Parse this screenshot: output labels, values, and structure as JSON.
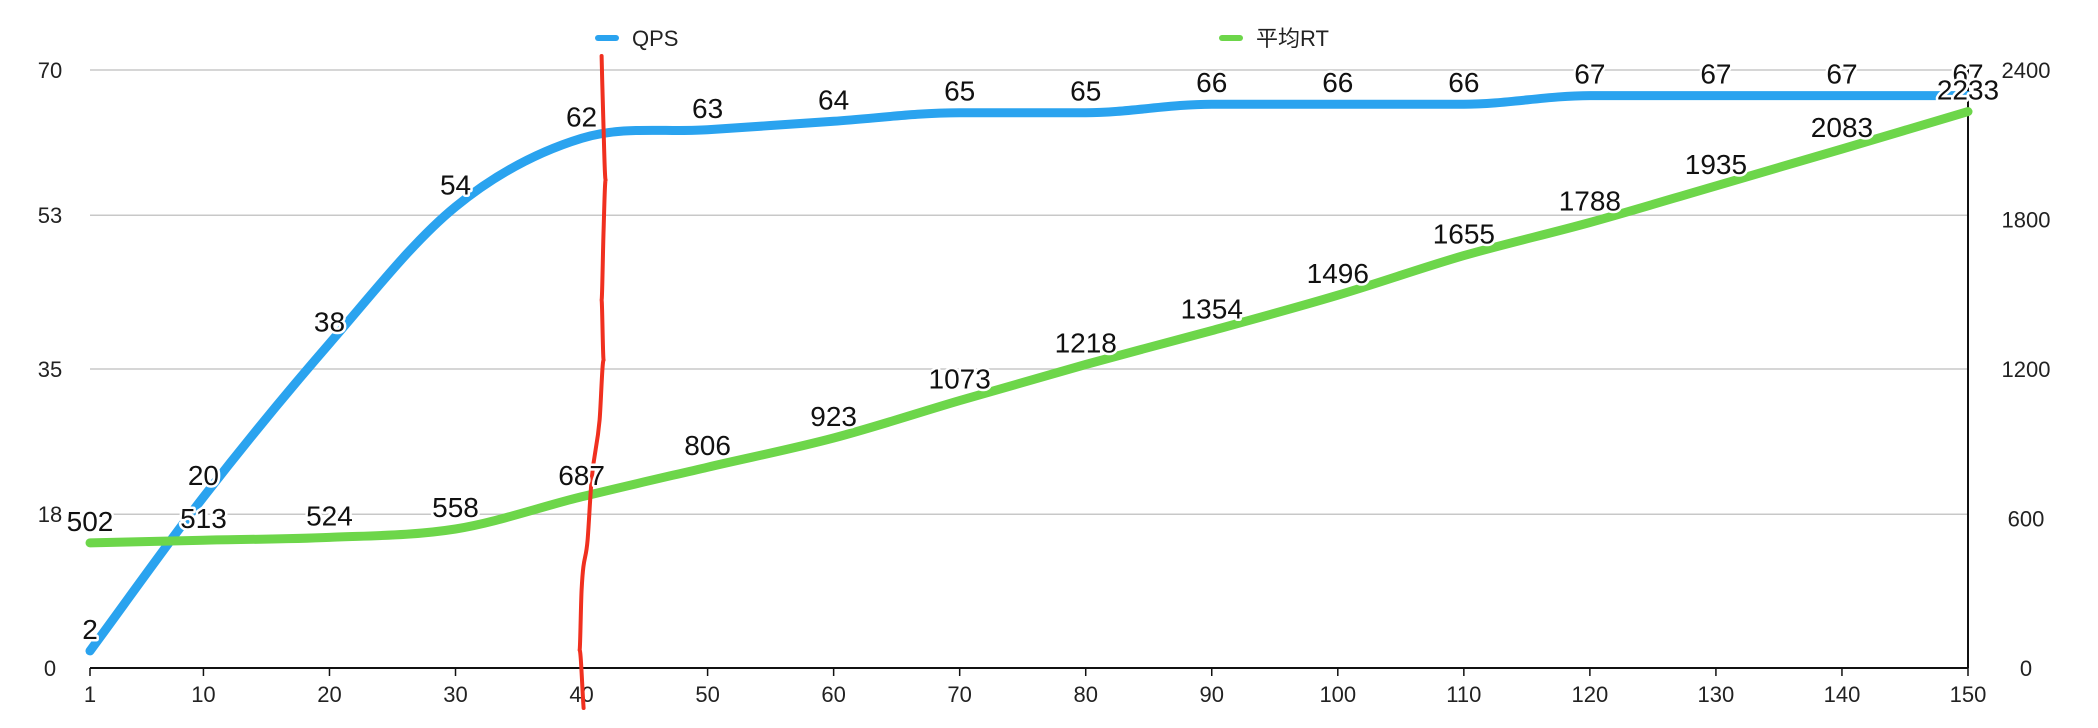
{
  "chart_data": {
    "type": "line",
    "x": [
      1,
      10,
      20,
      30,
      40,
      50,
      60,
      70,
      80,
      90,
      100,
      110,
      120,
      130,
      140,
      150
    ],
    "x_ticks": [
      "1",
      "10",
      "20",
      "30",
      "40",
      "50",
      "60",
      "70",
      "80",
      "90",
      "100",
      "110",
      "120",
      "130",
      "140",
      "150"
    ],
    "y_left": {
      "ticks": [
        "0",
        "18",
        "35",
        "53",
        "70"
      ],
      "ylim": [
        0,
        70
      ]
    },
    "y_right": {
      "ticks": [
        "0",
        "600",
        "1200",
        "1800",
        "2400"
      ],
      "ylim": [
        0,
        2400
      ]
    },
    "series": [
      {
        "name": "QPS",
        "axis": "left",
        "color": "#2aa3ef",
        "values": [
          2,
          20,
          38,
          54,
          62,
          63,
          64,
          65,
          65,
          66,
          66,
          66,
          67,
          67,
          67,
          67
        ],
        "labels": [
          "2",
          "20",
          "38",
          "54",
          "62",
          "63",
          "64",
          "65",
          "65",
          "66",
          "66",
          "66",
          "67",
          "67",
          "67",
          "67"
        ]
      },
      {
        "name": "平均RT",
        "axis": "right",
        "color": "#6dd64a",
        "values": [
          502,
          513,
          524,
          558,
          687,
          806,
          923,
          1073,
          1218,
          1354,
          1496,
          1655,
          1788,
          1935,
          2083,
          2233
        ],
        "labels": [
          "502",
          "513",
          "524",
          "558",
          "687",
          "806",
          "923",
          "1073",
          "1218",
          "1354",
          "1496",
          "1655",
          "1788",
          "1935",
          "2083",
          "2233"
        ]
      }
    ],
    "annotation": {
      "type": "hand-drawn vertical line",
      "color": "#f0301f",
      "at_x": 40
    },
    "grid": true,
    "legend": "top"
  }
}
